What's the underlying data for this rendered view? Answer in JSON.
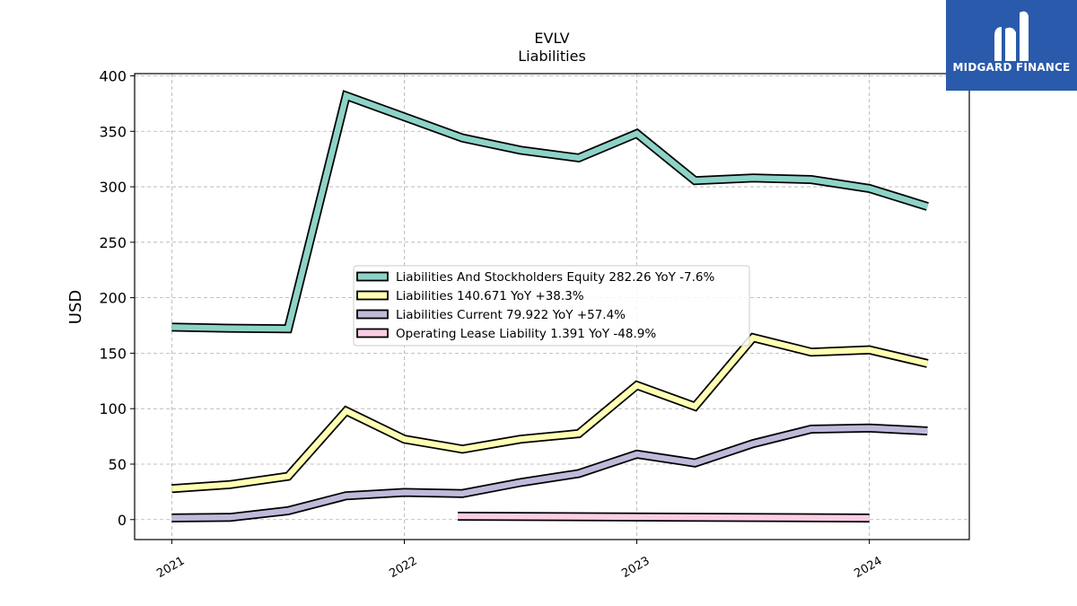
{
  "brand": {
    "name": "MIDGARD FINANCE",
    "icon": "midgard-logo-icon",
    "background": "#2a5aab"
  },
  "chart_data": {
    "type": "line",
    "title": "EVLV",
    "subtitle": "Liabilities",
    "xlabel": "",
    "ylabel": "USD",
    "xlim": [
      2020.84,
      2024.43
    ],
    "ylim": [
      -18,
      402
    ],
    "x_ticks": [
      {
        "x": 2021.0,
        "label": "2021"
      },
      {
        "x": 2022.0,
        "label": "2022"
      },
      {
        "x": 2023.0,
        "label": "2023"
      },
      {
        "x": 2024.0,
        "label": "2024"
      }
    ],
    "y_ticks": [
      0,
      50,
      100,
      150,
      200,
      250,
      300,
      350,
      400
    ],
    "grid": true,
    "legend_position": "center",
    "series": [
      {
        "name": "Liabilities And Stockholders Equity",
        "legend": "Liabilities And Stockholders Equity  282.26 YoY -7.6%",
        "color": "#8dd3c7",
        "x": [
          2021.0,
          2021.25,
          2021.5,
          2021.75,
          2022.0,
          2022.25,
          2022.5,
          2022.75,
          2023.0,
          2023.25,
          2023.5,
          2023.75,
          2024.0,
          2024.25
        ],
        "y": [
          173.5,
          172.5,
          172.0,
          382.0,
          363.0,
          344.0,
          333.0,
          326.0,
          348.0,
          305.5,
          308.0,
          306.5,
          298.5,
          282.26
        ]
      },
      {
        "name": "Liabilities",
        "legend": "Liabilities  140.671 YoY +38.3%",
        "color": "#ffffb3",
        "x": [
          2021.0,
          2021.25,
          2021.5,
          2021.75,
          2022.0,
          2022.25,
          2022.5,
          2022.75,
          2023.0,
          2023.25,
          2023.5,
          2023.75,
          2024.0,
          2024.25
        ],
        "y": [
          28.0,
          31.5,
          39.0,
          98.0,
          72.5,
          63.5,
          72.5,
          77.5,
          121.0,
          102.0,
          164.0,
          151.0,
          153.0,
          140.671
        ]
      },
      {
        "name": "Liabilities Current",
        "legend": "Liabilities Current  79.922 YoY +57.4%",
        "color": "#bebada",
        "x": [
          2021.0,
          2021.25,
          2021.5,
          2021.75,
          2022.0,
          2022.25,
          2022.5,
          2022.75,
          2023.0,
          2023.25,
          2023.5,
          2023.75,
          2024.0,
          2024.25
        ],
        "y": [
          1.5,
          2.0,
          8.0,
          21.5,
          24.5,
          23.5,
          33.5,
          41.5,
          59.0,
          51.0,
          68.5,
          81.5,
          82.5,
          79.922
        ]
      },
      {
        "name": "Operating Lease Liability",
        "legend": "Operating Lease Liability  1.391 YoY -48.9%",
        "color": "#fccde5",
        "x": [
          2022.23,
          2024.0
        ],
        "y": [
          3.0,
          1.391
        ]
      }
    ]
  }
}
